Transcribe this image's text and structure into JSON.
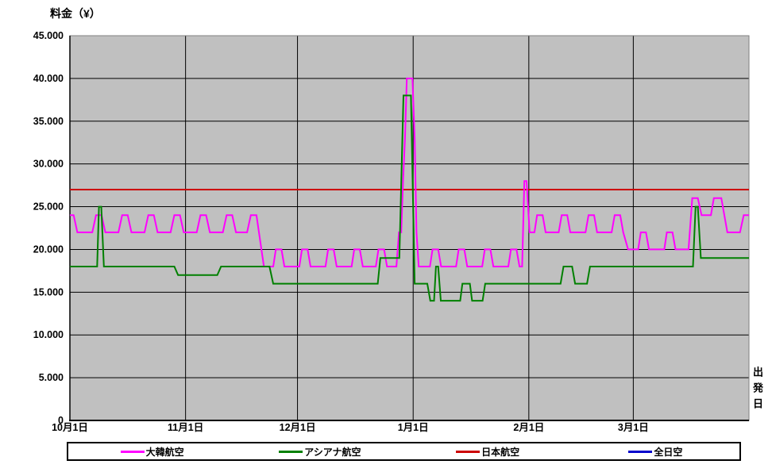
{
  "chart_data": {
    "type": "line",
    "title": "料金（¥）",
    "xlabel": "出発日",
    "legend_position": "bottom",
    "plot_background": "#C0C0C0",
    "grid_color": "#000000",
    "border_color": "#7F7F7F",
    "axis_color": "#000000",
    "x_axis": {
      "unit": "days_from_first_tick",
      "range_days": [
        0,
        182
      ],
      "ticks": [
        {
          "label": "10月1日",
          "day": 0
        },
        {
          "label": "11月1日",
          "day": 31
        },
        {
          "label": "12月1日",
          "day": 61
        },
        {
          "label": "1月1日",
          "day": 92
        },
        {
          "label": "2月1日",
          "day": 123
        },
        {
          "label": "3月1日",
          "day": 151
        }
      ]
    },
    "y_axis": {
      "min": 0,
      "max": 45000,
      "step": 5000,
      "tick_labels": [
        "0",
        "5.000",
        "10.000",
        "15.000",
        "20.000",
        "25.000",
        "30.000",
        "35.000",
        "40.000",
        "45.000"
      ]
    },
    "series": [
      {
        "id": "korean-air",
        "name": "大韓航空",
        "color": "#FF00FF",
        "points": [
          [
            0,
            24000
          ],
          [
            1,
            24000
          ],
          [
            2,
            22000
          ],
          [
            6,
            22000
          ],
          [
            7,
            24000
          ],
          [
            8.5,
            24000
          ],
          [
            9.5,
            22000
          ],
          [
            13,
            22000
          ],
          [
            14,
            24000
          ],
          [
            15.5,
            24000
          ],
          [
            16.5,
            22000
          ],
          [
            20,
            22000
          ],
          [
            21,
            24000
          ],
          [
            22.5,
            24000
          ],
          [
            23.5,
            22000
          ],
          [
            27,
            22000
          ],
          [
            28,
            24000
          ],
          [
            29.5,
            24000
          ],
          [
            30.5,
            22000
          ],
          [
            34,
            22000
          ],
          [
            35,
            24000
          ],
          [
            36.5,
            24000
          ],
          [
            37.5,
            22000
          ],
          [
            41,
            22000
          ],
          [
            42,
            24000
          ],
          [
            43.5,
            24000
          ],
          [
            44.5,
            22000
          ],
          [
            47.5,
            22000
          ],
          [
            48.5,
            24000
          ],
          [
            50,
            24000
          ],
          [
            52,
            18000
          ],
          [
            54.5,
            18000
          ],
          [
            55.2,
            20000
          ],
          [
            56.7,
            20000
          ],
          [
            57.5,
            18000
          ],
          [
            61.5,
            18000
          ],
          [
            62.2,
            20000
          ],
          [
            63.7,
            20000
          ],
          [
            64.5,
            18000
          ],
          [
            68.5,
            18000
          ],
          [
            69.2,
            20000
          ],
          [
            70.7,
            20000
          ],
          [
            71.5,
            18000
          ],
          [
            75.5,
            18000
          ],
          [
            76.2,
            20000
          ],
          [
            77.7,
            20000
          ],
          [
            78.5,
            18000
          ],
          [
            82,
            18000
          ],
          [
            82.7,
            20000
          ],
          [
            84.2,
            20000
          ],
          [
            85,
            18000
          ],
          [
            87.5,
            18000
          ],
          [
            88.2,
            22000
          ],
          [
            88.8,
            22000
          ],
          [
            89.3,
            28000
          ],
          [
            89.8,
            33000
          ],
          [
            90.3,
            40000
          ],
          [
            91.8,
            40000
          ],
          [
            92.4,
            33000
          ],
          [
            92.9,
            22000
          ],
          [
            93.5,
            18000
          ],
          [
            96.5,
            18000
          ],
          [
            97.2,
            20000
          ],
          [
            98.7,
            20000
          ],
          [
            99.5,
            18000
          ],
          [
            103.5,
            18000
          ],
          [
            104.2,
            20000
          ],
          [
            105.7,
            20000
          ],
          [
            106.5,
            18000
          ],
          [
            110.5,
            18000
          ],
          [
            111.2,
            20000
          ],
          [
            112.7,
            20000
          ],
          [
            113.5,
            18000
          ],
          [
            117.5,
            18000
          ],
          [
            118.2,
            20000
          ],
          [
            119.7,
            20000
          ],
          [
            120.5,
            18000
          ],
          [
            121.2,
            18000
          ],
          [
            121.8,
            28000
          ],
          [
            122.4,
            28000
          ],
          [
            123.2,
            22000
          ],
          [
            124.5,
            22000
          ],
          [
            125.2,
            24000
          ],
          [
            126.7,
            24000
          ],
          [
            127.5,
            22000
          ],
          [
            131,
            22000
          ],
          [
            131.8,
            24000
          ],
          [
            133.3,
            24000
          ],
          [
            134.1,
            22000
          ],
          [
            138.2,
            22000
          ],
          [
            139,
            24000
          ],
          [
            140.5,
            24000
          ],
          [
            141.3,
            22000
          ],
          [
            145.2,
            22000
          ],
          [
            146,
            24000
          ],
          [
            147.5,
            24000
          ],
          [
            148.3,
            22000
          ],
          [
            149.6,
            20000
          ],
          [
            152.3,
            20000
          ],
          [
            153,
            22000
          ],
          [
            154.4,
            22000
          ],
          [
            155.2,
            20000
          ],
          [
            159.3,
            20000
          ],
          [
            160,
            22000
          ],
          [
            161.5,
            22000
          ],
          [
            162.3,
            20000
          ],
          [
            165.8,
            20000
          ],
          [
            166.8,
            26000
          ],
          [
            168.3,
            26000
          ],
          [
            169.3,
            24000
          ],
          [
            171.8,
            24000
          ],
          [
            172.6,
            26000
          ],
          [
            174.6,
            26000
          ],
          [
            176.2,
            22000
          ],
          [
            179.6,
            22000
          ],
          [
            180.6,
            24000
          ],
          [
            182,
            24000
          ]
        ]
      },
      {
        "id": "asiana",
        "name": "アシアナ航空",
        "color": "#008000",
        "points": [
          [
            0,
            18000
          ],
          [
            7.3,
            18000
          ],
          [
            7.8,
            25000
          ],
          [
            8.4,
            25000
          ],
          [
            9.1,
            18000
          ],
          [
            28,
            18000
          ],
          [
            29,
            17000
          ],
          [
            39.5,
            17000
          ],
          [
            40.5,
            18000
          ],
          [
            53.5,
            18000
          ],
          [
            54.5,
            16000
          ],
          [
            82.5,
            16000
          ],
          [
            83.2,
            19000
          ],
          [
            88.3,
            19000
          ],
          [
            89.4,
            38000
          ],
          [
            91.4,
            38000
          ],
          [
            92.4,
            16000
          ],
          [
            95.8,
            16000
          ],
          [
            96.6,
            14000
          ],
          [
            97.6,
            14000
          ],
          [
            98.1,
            18000
          ],
          [
            98.7,
            18000
          ],
          [
            99.4,
            14000
          ],
          [
            104.6,
            14000
          ],
          [
            105.2,
            16000
          ],
          [
            107.2,
            16000
          ],
          [
            107.8,
            14000
          ],
          [
            110.6,
            14000
          ],
          [
            111.3,
            16000
          ],
          [
            131.5,
            16000
          ],
          [
            132.3,
            18000
          ],
          [
            134.6,
            18000
          ],
          [
            135.4,
            16000
          ],
          [
            138.6,
            16000
          ],
          [
            139.4,
            18000
          ],
          [
            167,
            18000
          ],
          [
            167.7,
            25000
          ],
          [
            168.3,
            25000
          ],
          [
            169.1,
            19000
          ],
          [
            182,
            19000
          ]
        ]
      },
      {
        "id": "jal",
        "name": "日本航空",
        "color": "#CC0000",
        "points": [
          [
            0,
            27000
          ],
          [
            182,
            27000
          ]
        ]
      },
      {
        "id": "ana",
        "name": "全日空",
        "color": "#0000CC",
        "points": []
      }
    ]
  }
}
